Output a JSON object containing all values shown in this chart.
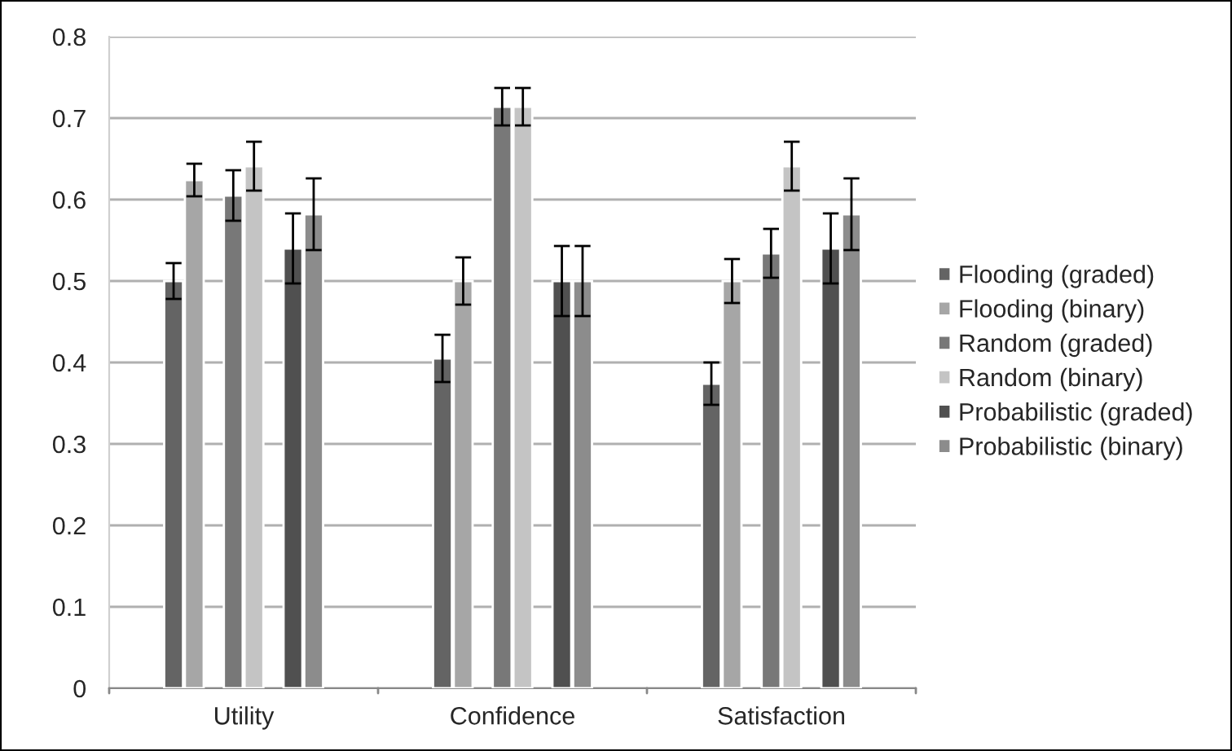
{
  "chart_data": {
    "type": "bar",
    "categories": [
      "Utility",
      "Confidence",
      "Satisfaction"
    ],
    "series": [
      {
        "name": "Flooding (graded)",
        "color": "#646464",
        "values": [
          0.5,
          0.405,
          0.374
        ],
        "errors": [
          0.022,
          0.029,
          0.026
        ]
      },
      {
        "name": "Flooding (binary)",
        "color": "#a6a6a6",
        "values": [
          0.624,
          0.5,
          0.5
        ],
        "errors": [
          0.02,
          0.029,
          0.027
        ]
      },
      {
        "name": "Random (graded)",
        "color": "#787878",
        "values": [
          0.605,
          0.714,
          0.534
        ],
        "errors": [
          0.031,
          0.023,
          0.03
        ]
      },
      {
        "name": "Random (binary)",
        "color": "#c4c4c4",
        "values": [
          0.641,
          0.714,
          0.641
        ],
        "errors": [
          0.03,
          0.023,
          0.03
        ]
      },
      {
        "name": "Probabilistic (graded)",
        "color": "#505050",
        "values": [
          0.54,
          0.5,
          0.54
        ],
        "errors": [
          0.043,
          0.043,
          0.043
        ]
      },
      {
        "name": "Probabilistic (binary)",
        "color": "#8c8c8c",
        "values": [
          0.582,
          0.5,
          0.582
        ],
        "errors": [
          0.044,
          0.043,
          0.044
        ]
      }
    ],
    "ylim": [
      0,
      0.8
    ],
    "yticks": [
      0,
      0.1,
      0.2,
      0.3,
      0.4,
      0.5,
      0.6,
      0.7,
      0.8
    ],
    "grid": "y",
    "legend": "right"
  }
}
